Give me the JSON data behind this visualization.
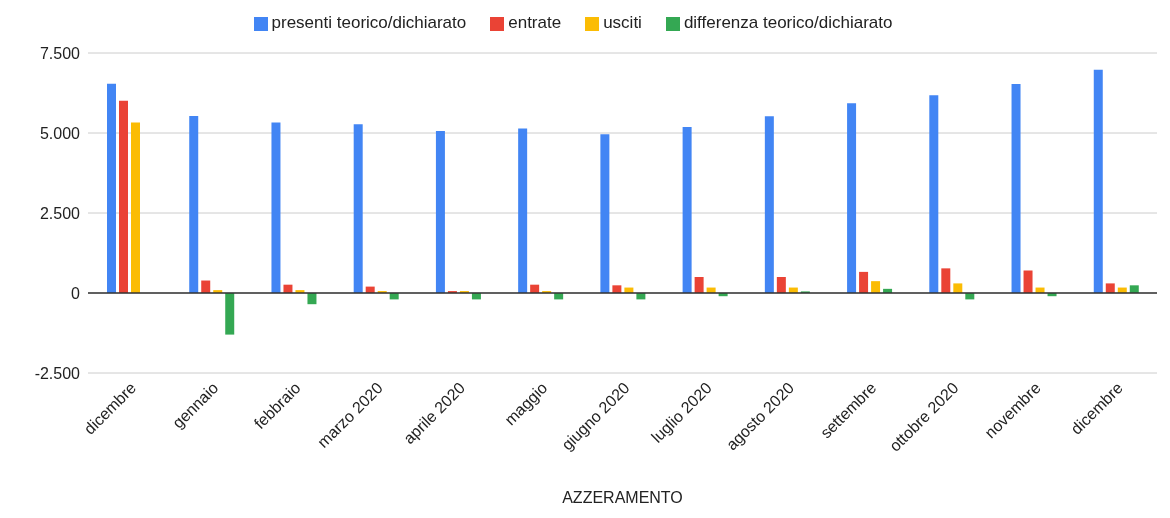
{
  "chart_data": {
    "type": "bar",
    "xlabel": "AZZERAMENTO",
    "categories": [
      "dicembre",
      "gennaio",
      "febbraio",
      "marzo 2020",
      "aprile 2020",
      "maggio",
      "giugno 2020",
      "luglio 2020",
      "agosto 2020",
      "settembre",
      "ottobre 2020",
      "novembre",
      "dicembre"
    ],
    "series": [
      {
        "name": "presenti teorico/dichiarato",
        "color": "#4285f4",
        "values": [
          6540,
          5530,
          5330,
          5270,
          5060,
          5140,
          4960,
          5190,
          5520,
          5930,
          6180,
          6530,
          6980
        ]
      },
      {
        "name": "entrate",
        "color": "#ea4335",
        "values": [
          6010,
          390,
          260,
          200,
          60,
          260,
          240,
          500,
          500,
          660,
          770,
          700,
          300
        ]
      },
      {
        "name": "usciti",
        "color": "#fbbc04",
        "values": [
          5330,
          90,
          90,
          60,
          60,
          60,
          170,
          170,
          170,
          370,
          300,
          170,
          170
        ]
      },
      {
        "name": "differenza teorico/dichiarato",
        "color": "#34a853",
        "values": [
          0,
          -1300,
          -350,
          -200,
          -200,
          -200,
          -200,
          -100,
          50,
          130,
          -200,
          -100,
          240
        ]
      }
    ],
    "ylim": [
      -2500,
      7500
    ],
    "yticks": [
      {
        "value": -2500,
        "label": "-2.500"
      },
      {
        "value": 0,
        "label": "0"
      },
      {
        "value": 2500,
        "label": "2.500"
      },
      {
        "value": 5000,
        "label": "5.000"
      },
      {
        "value": 7500,
        "label": "7.500"
      }
    ],
    "grid": "y",
    "legend": "top"
  }
}
